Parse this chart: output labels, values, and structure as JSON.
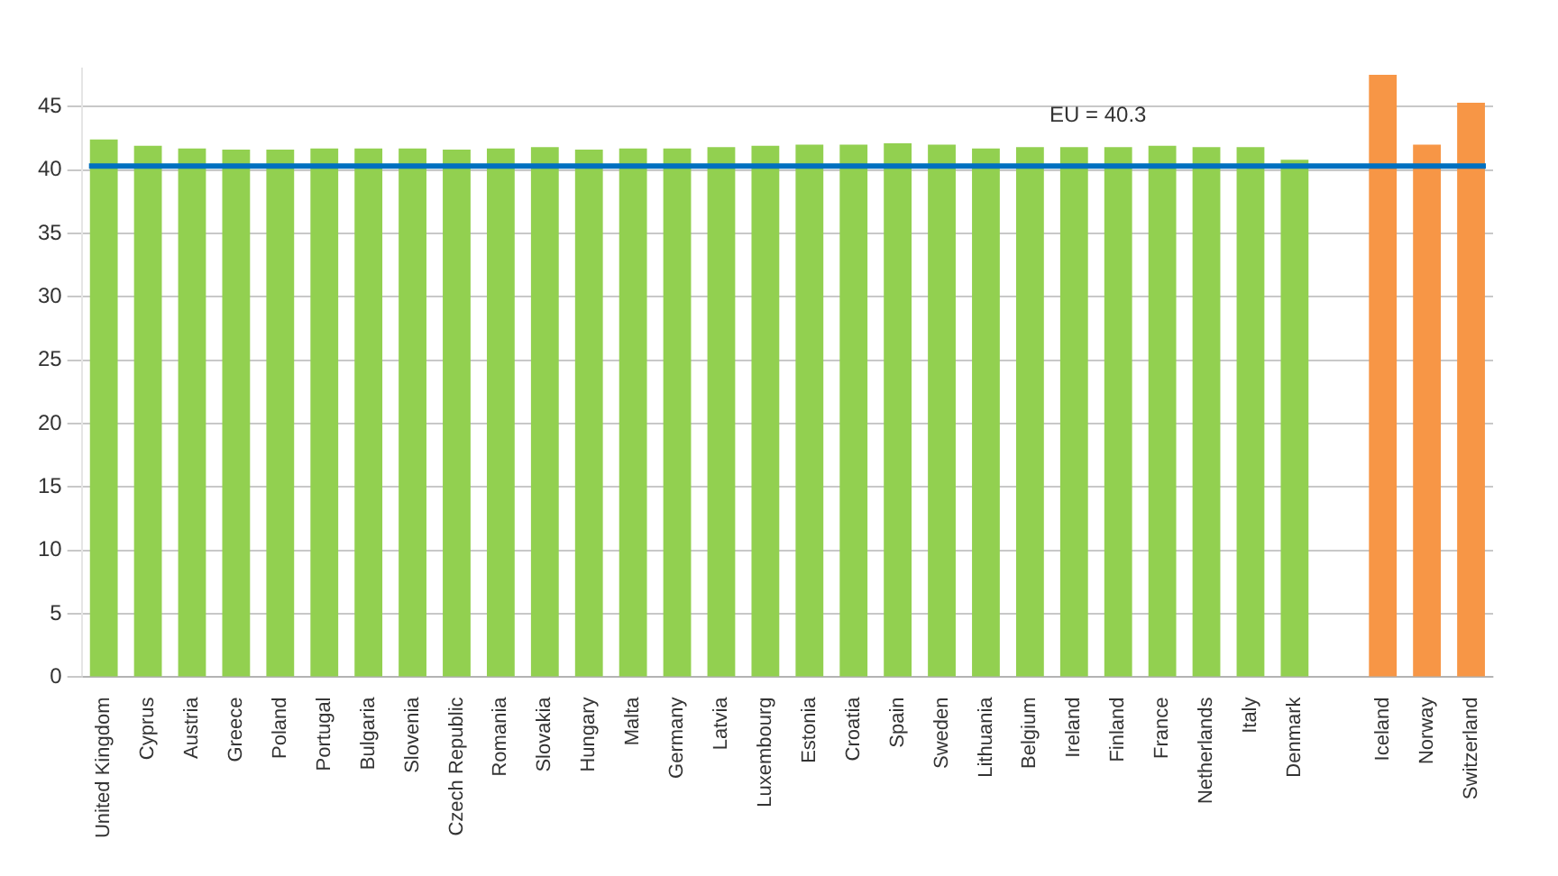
{
  "chart_data": {
    "type": "bar",
    "categories": [
      "United Kingdom",
      "Cyprus",
      "Austria",
      "Greece",
      "Poland",
      "Portugal",
      "Bulgaria",
      "Slovenia",
      "Czech Republic",
      "Romania",
      "Slovakia",
      "Hungary",
      "Malta",
      "Germany",
      "Latvia",
      "Luxembourg",
      "Estonia",
      "Croatia",
      "Spain",
      "Sweden",
      "Lithuania",
      "Belgium",
      "Ireland",
      "Finland",
      "France",
      "Netherlands",
      "Italy",
      "Denmark",
      null,
      "Iceland",
      "Norway",
      "Switzerland"
    ],
    "values": [
      42.4,
      41.9,
      41.7,
      41.6,
      41.6,
      41.7,
      41.7,
      41.7,
      41.6,
      41.7,
      41.8,
      41.6,
      41.7,
      41.7,
      41.8,
      41.9,
      42.0,
      42.0,
      42.1,
      42.0,
      41.7,
      41.8,
      41.8,
      41.8,
      41.9,
      41.8,
      41.8,
      40.8,
      null,
      47.5,
      42.0,
      45.3
    ],
    "colors": [
      "#92d050",
      "#92d050",
      "#92d050",
      "#92d050",
      "#92d050",
      "#92d050",
      "#92d050",
      "#92d050",
      "#92d050",
      "#92d050",
      "#92d050",
      "#92d050",
      "#92d050",
      "#92d050",
      "#92d050",
      "#92d050",
      "#92d050",
      "#92d050",
      "#92d050",
      "#92d050",
      "#92d050",
      "#92d050",
      "#92d050",
      "#92d050",
      "#92d050",
      "#92d050",
      "#92d050",
      "#92d050",
      "#92d050",
      "#f79646",
      "#f79646",
      "#f79646"
    ],
    "ylim": [
      0,
      48
    ],
    "yticks": [
      0,
      5,
      10,
      15,
      20,
      25,
      30,
      35,
      40,
      45
    ],
    "grid": "y",
    "legend": false,
    "ref_lines": [
      {
        "axis": "y",
        "value": 40.3,
        "label": "EU = 40.3",
        "color": "#0070c0"
      }
    ]
  }
}
